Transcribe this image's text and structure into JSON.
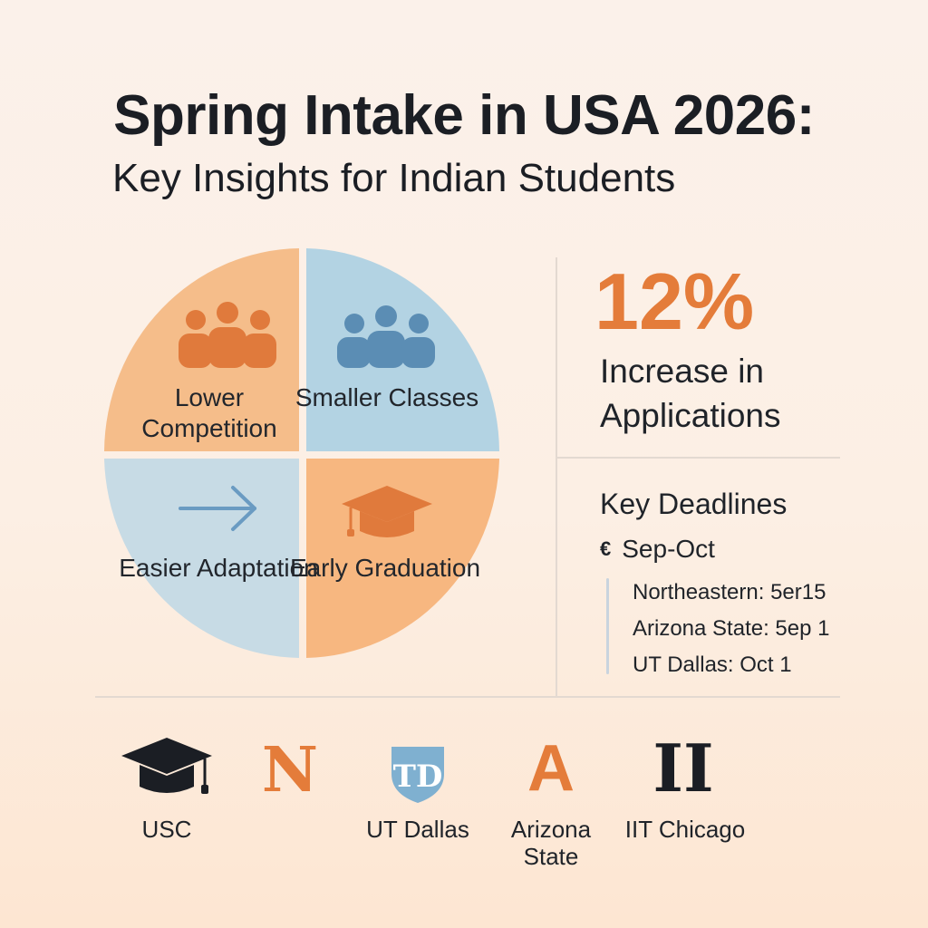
{
  "header": {
    "title": "Spring Intake in USA 2026:",
    "subtitle": "Key Insights for Indian Students"
  },
  "quadrants": [
    {
      "label": "Lower Competition",
      "icon": "people-group-icon",
      "color": "#f4b985"
    },
    {
      "label": "Smaller Classes",
      "icon": "people-group-icon",
      "color": "#b3d3e3"
    },
    {
      "label": "Easier Adaptation",
      "icon": "arrow-right-icon",
      "color": "#c7dbe5"
    },
    {
      "label": "Early Graduation",
      "icon": "graduation-cap-icon",
      "color": "#f7b780"
    }
  ],
  "stat": {
    "value": "12%",
    "label": "Increase in Applications"
  },
  "deadlines": {
    "title": "Key Deadlines",
    "range": "Sep-Oct",
    "range_icon": "calendar-icon",
    "items": [
      "Northeastern: 5er15",
      "Arizona State: 5ep 1",
      "UT Dallas: Oct 1"
    ]
  },
  "universities": [
    {
      "name": "USC",
      "logo": "graduation-cap-icon"
    },
    {
      "name": "",
      "logo": "N"
    },
    {
      "name": "UT Dallas",
      "logo": "TD"
    },
    {
      "name": "Arizona State",
      "logo": "A"
    },
    {
      "name": "IIT Chicago",
      "logo": "II"
    }
  ],
  "colors": {
    "orange": "#e47c3a",
    "orange_light": "#f4b985",
    "blue": "#5b8db4",
    "blue_light": "#b3d3e3",
    "dark": "#1f2329"
  }
}
